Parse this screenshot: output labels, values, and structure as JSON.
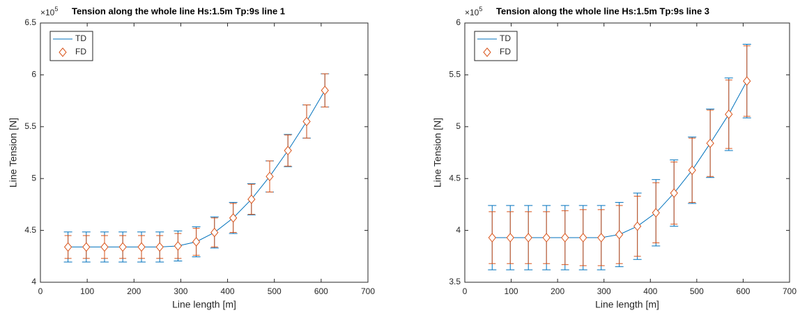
{
  "chart_data": [
    {
      "type": "errorbar",
      "title": "Tension along the whole line Hs:1.5m Tp:9s line 1",
      "x_label": "Line length [m]",
      "y_label": "Line Tension [N]",
      "y_multiplier": "×10",
      "y_exponent": "5",
      "x": [
        59,
        98,
        137,
        176,
        216,
        255,
        294,
        333,
        372,
        412,
        451,
        490,
        529,
        569,
        608
      ],
      "series": [
        {
          "name": "TD",
          "color": "#0072BD",
          "marker": "none",
          "values": [
            4.34,
            4.34,
            4.34,
            4.34,
            4.34,
            4.34,
            4.35,
            4.39,
            4.48,
            4.62,
            4.8,
            5.02,
            5.27,
            5.55,
            5.85
          ],
          "errors": [
            0.145,
            0.145,
            0.145,
            0.145,
            0.145,
            0.145,
            0.145,
            0.145,
            0.15,
            0.15,
            0.15,
            0.15,
            0.155,
            0.16,
            0.16
          ]
        },
        {
          "name": "FD",
          "color": "#D95319",
          "marker": "diamond",
          "values": [
            4.34,
            4.34,
            4.34,
            4.34,
            4.34,
            4.34,
            4.35,
            4.39,
            4.48,
            4.62,
            4.8,
            5.02,
            5.27,
            5.55,
            5.85
          ],
          "errors": [
            0.11,
            0.11,
            0.11,
            0.11,
            0.11,
            0.11,
            0.12,
            0.13,
            0.14,
            0.14,
            0.145,
            0.15,
            0.15,
            0.16,
            0.16
          ]
        }
      ],
      "xlim": [
        0,
        700
      ],
      "xticks": [
        0,
        100,
        200,
        300,
        400,
        500,
        600,
        700
      ],
      "ylim": [
        4,
        6.5
      ],
      "yticks": [
        4,
        4.5,
        5,
        5.5,
        6,
        6.5
      ],
      "grid": false,
      "legend_position": "northwest"
    },
    {
      "type": "errorbar",
      "title": "Tension along the whole line Hs:1.5m Tp:9s line 3",
      "x_label": "Line length [m]",
      "y_label": "Line Tension [N]",
      "y_multiplier": "×10",
      "y_exponent": "5",
      "x": [
        59,
        98,
        137,
        176,
        216,
        255,
        294,
        333,
        372,
        412,
        451,
        490,
        529,
        569,
        608
      ],
      "series": [
        {
          "name": "TD",
          "color": "#0072BD",
          "marker": "none",
          "values": [
            3.93,
            3.93,
            3.93,
            3.93,
            3.93,
            3.93,
            3.93,
            3.96,
            4.04,
            4.17,
            4.36,
            4.58,
            4.84,
            5.12,
            5.44
          ],
          "errors": [
            0.31,
            0.31,
            0.31,
            0.31,
            0.31,
            0.31,
            0.31,
            0.31,
            0.32,
            0.32,
            0.32,
            0.32,
            0.33,
            0.35,
            0.355
          ]
        },
        {
          "name": "FD",
          "color": "#D95319",
          "marker": "diamond",
          "values": [
            3.93,
            3.93,
            3.93,
            3.93,
            3.93,
            3.93,
            3.93,
            3.96,
            4.04,
            4.17,
            4.36,
            4.58,
            4.84,
            5.12,
            5.44
          ],
          "errors": [
            0.25,
            0.25,
            0.25,
            0.25,
            0.26,
            0.27,
            0.27,
            0.28,
            0.29,
            0.29,
            0.3,
            0.31,
            0.32,
            0.33,
            0.34
          ]
        }
      ],
      "xlim": [
        0,
        700
      ],
      "xticks": [
        0,
        100,
        200,
        300,
        400,
        500,
        600,
        700
      ],
      "ylim": [
        3.5,
        6
      ],
      "yticks": [
        3.5,
        4,
        4.5,
        5,
        5.5,
        6
      ],
      "grid": false,
      "legend_position": "northwest"
    }
  ]
}
